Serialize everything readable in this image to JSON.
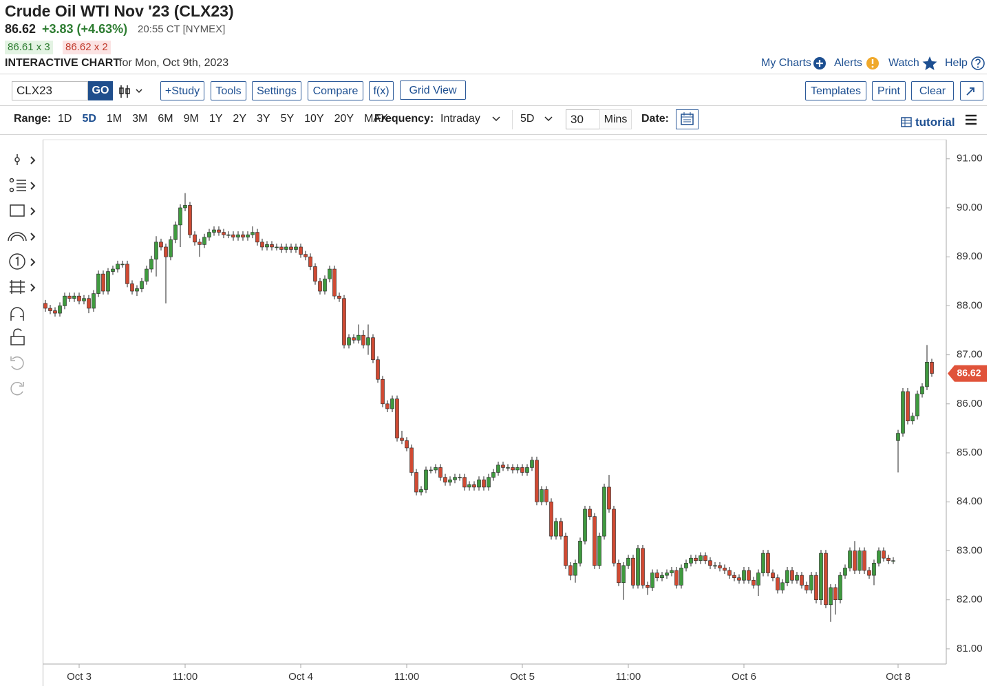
{
  "header": {
    "title": "Crude Oil WTI Nov '23 (CLX23)",
    "price": "86.62",
    "change": "+3.83 (+4.63%)",
    "time": "20:55 CT [NYMEX]",
    "bid": "86.61 x 3",
    "ask": "86.62 x 2",
    "section": "INTERACTIVE CHART",
    "date": "for Mon, Oct 9th, 2023",
    "links": [
      "My Charts",
      "Alerts",
      "Watch",
      "Help"
    ]
  },
  "toolbar": {
    "symbol": "CLX23",
    "go": "GO",
    "left_buttons": [
      "+Study",
      "Tools",
      "Settings",
      "Compare",
      "f(x)",
      "Grid View"
    ],
    "right_buttons": [
      "Templates",
      "Print",
      "Clear"
    ]
  },
  "range_bar": {
    "range_label": "Range:",
    "ranges": [
      "1D",
      "5D",
      "1M",
      "3M",
      "6M",
      "9M",
      "1Y",
      "2Y",
      "3Y",
      "5Y",
      "10Y",
      "20Y",
      "MAX"
    ],
    "active_range": 1,
    "frequency_label": "Frequency:",
    "frequency": "Intraday",
    "period": "5D",
    "interval": "30",
    "interval_unit": "Mins",
    "date_label": "Date:",
    "tutorial": "tutorial"
  },
  "chart_data": {
    "type": "candlestick",
    "categories": [
      null,
      null,
      null,
      null,
      null,
      null,
      null,
      "Oct 3",
      null,
      null,
      null,
      null,
      null,
      null,
      null,
      null,
      null,
      null,
      null,
      null,
      null,
      null,
      null,
      null,
      null,
      null,
      null,
      null,
      null,
      "11:00",
      null,
      null,
      null,
      null,
      null,
      null,
      null,
      null,
      null,
      null,
      null,
      null,
      null,
      null,
      null,
      null,
      null,
      null,
      null,
      null,
      null,
      null,
      null,
      "Oct 4",
      null,
      null,
      null,
      null,
      null,
      null,
      null,
      null,
      null,
      null,
      null,
      null,
      null,
      null,
      null,
      null,
      null,
      null,
      null,
      null,
      null,
      "11:00",
      null,
      null,
      null,
      null,
      null,
      null,
      null,
      null,
      null,
      null,
      null,
      null,
      null,
      null,
      null,
      null,
      null,
      null,
      null,
      null,
      null,
      null,
      null,
      "Oct 5",
      null,
      null,
      null,
      null,
      null,
      null,
      null,
      null,
      null,
      null,
      null,
      null,
      null,
      null,
      null,
      null,
      null,
      null,
      null,
      null,
      null,
      "11:00",
      null,
      null,
      null,
      null,
      null,
      null,
      null,
      null,
      null,
      null,
      null,
      null,
      null,
      null,
      null,
      null,
      null,
      null,
      null,
      null,
      null,
      null,
      null,
      "Oct 6",
      null,
      null,
      null,
      null,
      null,
      null,
      null,
      null,
      null,
      null,
      null,
      null,
      null,
      null,
      null,
      null,
      null,
      null,
      null,
      null,
      null,
      null,
      null,
      null,
      null,
      null,
      null,
      null,
      null,
      null,
      null,
      "Oct 8",
      null,
      null,
      null,
      null,
      null,
      null,
      null
    ],
    "candles": [
      [
        88.05,
        88.12,
        87.88,
        87.95
      ],
      [
        87.95,
        88.02,
        87.83,
        87.9
      ],
      [
        87.9,
        87.97,
        87.78,
        87.85
      ],
      [
        87.85,
        88.07,
        87.78,
        88.0
      ],
      [
        88.0,
        88.27,
        87.93,
        88.2
      ],
      [
        88.2,
        88.27,
        88.08,
        88.15
      ],
      [
        88.15,
        88.27,
        88.08,
        88.2
      ],
      [
        88.2,
        88.27,
        88.03,
        88.1
      ],
      [
        88.1,
        88.22,
        88.03,
        88.15
      ],
      [
        88.15,
        88.22,
        87.85,
        87.95
      ],
      [
        87.95,
        88.32,
        87.88,
        88.25
      ],
      [
        88.25,
        88.72,
        88.18,
        88.65
      ],
      [
        88.65,
        88.72,
        88.23,
        88.3
      ],
      [
        88.3,
        88.77,
        88.23,
        88.7
      ],
      [
        88.7,
        88.82,
        88.63,
        88.75
      ],
      [
        88.75,
        88.92,
        88.68,
        88.85
      ],
      [
        88.85,
        88.92,
        88.78,
        88.85
      ],
      [
        88.85,
        88.92,
        88.38,
        88.45
      ],
      [
        88.45,
        88.52,
        88.23,
        88.3
      ],
      [
        88.3,
        88.42,
        88.2,
        88.35
      ],
      [
        88.35,
        88.57,
        88.28,
        88.5
      ],
      [
        88.5,
        88.82,
        88.43,
        88.75
      ],
      [
        88.75,
        89.02,
        88.68,
        88.95
      ],
      [
        88.95,
        89.42,
        88.6,
        89.3
      ],
      [
        89.3,
        89.37,
        89.13,
        89.2
      ],
      [
        89.2,
        89.27,
        88.05,
        89.0
      ],
      [
        89.0,
        89.42,
        88.93,
        89.35
      ],
      [
        89.35,
        89.72,
        89.28,
        89.65
      ],
      [
        89.65,
        90.07,
        89.2,
        90.0
      ],
      [
        90.0,
        90.3,
        89.93,
        90.05
      ],
      [
        90.05,
        90.12,
        89.38,
        89.45
      ],
      [
        89.45,
        89.52,
        89.23,
        89.3
      ],
      [
        89.3,
        89.37,
        89.0,
        89.25
      ],
      [
        89.25,
        89.47,
        89.18,
        89.4
      ],
      [
        89.4,
        89.57,
        89.33,
        89.5
      ],
      [
        89.5,
        89.62,
        89.43,
        89.55
      ],
      [
        89.55,
        89.62,
        89.43,
        89.5
      ],
      [
        89.5,
        89.57,
        89.38,
        89.45
      ],
      [
        89.45,
        89.52,
        89.38,
        89.45
      ],
      [
        89.45,
        89.52,
        89.33,
        89.4
      ],
      [
        89.4,
        89.52,
        89.33,
        89.45
      ],
      [
        89.45,
        89.52,
        89.33,
        89.4
      ],
      [
        89.4,
        89.52,
        89.33,
        89.45
      ],
      [
        89.45,
        89.62,
        89.38,
        89.5
      ],
      [
        89.5,
        89.57,
        89.23,
        89.3
      ],
      [
        89.3,
        89.37,
        89.13,
        89.2
      ],
      [
        89.2,
        89.32,
        89.13,
        89.25
      ],
      [
        89.25,
        89.32,
        89.13,
        89.2
      ],
      [
        89.2,
        89.27,
        89.13,
        89.2
      ],
      [
        89.2,
        89.27,
        89.08,
        89.15
      ],
      [
        89.15,
        89.27,
        89.08,
        89.2
      ],
      [
        89.2,
        89.27,
        89.08,
        89.15
      ],
      [
        89.15,
        89.27,
        89.08,
        89.2
      ],
      [
        89.2,
        89.27,
        88.98,
        89.05
      ],
      [
        89.05,
        89.12,
        88.93,
        89.0
      ],
      [
        89.0,
        89.07,
        88.73,
        88.8
      ],
      [
        88.8,
        88.87,
        88.43,
        88.5
      ],
      [
        88.5,
        88.57,
        88.23,
        88.3
      ],
      [
        88.3,
        88.62,
        88.23,
        88.55
      ],
      [
        88.55,
        88.82,
        88.48,
        88.75
      ],
      [
        88.75,
        88.82,
        88.13,
        88.2
      ],
      [
        88.2,
        88.27,
        88.08,
        88.15
      ],
      [
        88.15,
        88.22,
        87.13,
        87.2
      ],
      [
        87.2,
        87.42,
        87.13,
        87.35
      ],
      [
        87.35,
        87.42,
        87.23,
        87.3
      ],
      [
        87.3,
        87.62,
        87.23,
        87.4
      ],
      [
        87.4,
        87.5,
        87.13,
        87.2
      ],
      [
        87.2,
        87.62,
        87.0,
        87.35
      ],
      [
        87.35,
        87.42,
        86.83,
        86.9
      ],
      [
        86.9,
        86.97,
        86.43,
        86.5
      ],
      [
        86.5,
        86.57,
        85.93,
        86.0
      ],
      [
        86.0,
        86.07,
        85.83,
        85.9
      ],
      [
        85.9,
        86.17,
        85.83,
        86.1
      ],
      [
        86.1,
        86.17,
        85.23,
        85.3
      ],
      [
        85.3,
        85.45,
        85.18,
        85.25
      ],
      [
        85.25,
        85.32,
        85.03,
        85.1
      ],
      [
        85.1,
        85.17,
        84.53,
        84.6
      ],
      [
        84.6,
        84.67,
        84.13,
        84.2
      ],
      [
        84.2,
        84.32,
        84.13,
        84.25
      ],
      [
        84.25,
        84.72,
        84.18,
        84.65
      ],
      [
        84.65,
        84.72,
        84.58,
        84.65
      ],
      [
        84.65,
        84.77,
        84.58,
        84.7
      ],
      [
        84.7,
        84.77,
        84.43,
        84.5
      ],
      [
        84.5,
        84.57,
        84.33,
        84.4
      ],
      [
        84.4,
        84.52,
        84.33,
        84.45
      ],
      [
        84.45,
        84.57,
        84.38,
        84.5
      ],
      [
        84.5,
        84.57,
        84.43,
        84.5
      ],
      [
        84.5,
        84.57,
        84.23,
        84.3
      ],
      [
        84.3,
        84.42,
        84.23,
        84.35
      ],
      [
        84.35,
        84.42,
        84.23,
        84.3
      ],
      [
        84.3,
        84.52,
        84.23,
        84.45
      ],
      [
        84.45,
        84.52,
        84.23,
        84.3
      ],
      [
        84.3,
        84.57,
        84.23,
        84.5
      ],
      [
        84.5,
        84.67,
        84.43,
        84.6
      ],
      [
        84.6,
        84.82,
        84.53,
        84.75
      ],
      [
        84.75,
        84.82,
        84.63,
        84.7
      ],
      [
        84.7,
        84.77,
        84.63,
        84.7
      ],
      [
        84.7,
        84.77,
        84.58,
        84.65
      ],
      [
        84.65,
        84.77,
        84.58,
        84.7
      ],
      [
        84.7,
        84.77,
        84.53,
        84.6
      ],
      [
        84.6,
        84.77,
        84.53,
        84.7
      ],
      [
        84.7,
        84.92,
        84.63,
        84.85
      ],
      [
        84.85,
        84.92,
        83.93,
        84.0
      ],
      [
        84.0,
        84.32,
        83.93,
        84.25
      ],
      [
        84.25,
        84.32,
        83.93,
        84.0
      ],
      [
        84.0,
        84.07,
        83.23,
        83.3
      ],
      [
        83.3,
        83.67,
        83.23,
        83.6
      ],
      [
        83.6,
        83.67,
        83.23,
        83.3
      ],
      [
        83.3,
        83.37,
        82.63,
        82.7
      ],
      [
        82.7,
        82.77,
        82.4,
        82.5
      ],
      [
        82.5,
        82.82,
        82.35,
        82.75
      ],
      [
        82.75,
        83.27,
        82.68,
        83.2
      ],
      [
        83.2,
        83.92,
        83.13,
        83.85
      ],
      [
        83.85,
        83.92,
        83.63,
        83.7
      ],
      [
        83.7,
        83.77,
        82.63,
        82.7
      ],
      [
        82.7,
        83.37,
        82.63,
        83.3
      ],
      [
        83.3,
        84.37,
        83.23,
        84.3
      ],
      [
        84.3,
        84.55,
        83.78,
        83.85
      ],
      [
        83.85,
        83.92,
        82.68,
        82.75
      ],
      [
        82.75,
        82.82,
        82.28,
        82.35
      ],
      [
        82.35,
        82.77,
        82.0,
        82.7
      ],
      [
        82.7,
        82.92,
        82.63,
        82.85
      ],
      [
        82.85,
        82.92,
        82.23,
        82.3
      ],
      [
        82.3,
        83.12,
        82.23,
        83.05
      ],
      [
        83.05,
        83.12,
        82.23,
        82.3
      ],
      [
        82.3,
        82.37,
        82.1,
        82.25
      ],
      [
        82.25,
        82.62,
        82.18,
        82.55
      ],
      [
        82.55,
        82.62,
        82.38,
        82.45
      ],
      [
        82.45,
        82.57,
        82.38,
        82.5
      ],
      [
        82.5,
        82.62,
        82.43,
        82.55
      ],
      [
        82.55,
        82.67,
        82.48,
        82.6
      ],
      [
        82.6,
        82.67,
        82.23,
        82.3
      ],
      [
        82.3,
        82.72,
        82.23,
        82.65
      ],
      [
        82.65,
        82.82,
        82.58,
        82.75
      ],
      [
        82.75,
        82.92,
        82.68,
        82.85
      ],
      [
        82.85,
        82.92,
        82.73,
        82.8
      ],
      [
        82.8,
        82.97,
        82.73,
        82.9
      ],
      [
        82.9,
        82.97,
        82.73,
        82.8
      ],
      [
        82.8,
        82.87,
        82.63,
        82.7
      ],
      [
        82.7,
        82.77,
        82.63,
        82.7
      ],
      [
        82.7,
        82.77,
        82.58,
        82.65
      ],
      [
        82.65,
        82.72,
        82.53,
        82.6
      ],
      [
        82.6,
        82.67,
        82.43,
        82.5
      ],
      [
        82.5,
        82.57,
        82.38,
        82.45
      ],
      [
        82.45,
        82.52,
        82.33,
        82.4
      ],
      [
        82.4,
        82.67,
        82.33,
        82.6
      ],
      [
        82.6,
        82.67,
        82.33,
        82.4
      ],
      [
        82.4,
        82.47,
        82.23,
        82.3
      ],
      [
        82.3,
        82.62,
        82.08,
        82.55
      ],
      [
        82.55,
        83.02,
        82.48,
        82.95
      ],
      [
        82.95,
        83.02,
        82.48,
        82.55
      ],
      [
        82.55,
        82.62,
        82.38,
        82.45
      ],
      [
        82.45,
        82.52,
        82.13,
        82.2
      ],
      [
        82.2,
        82.42,
        82.13,
        82.35
      ],
      [
        82.35,
        82.67,
        82.28,
        82.6
      ],
      [
        82.6,
        82.67,
        82.33,
        82.4
      ],
      [
        82.4,
        82.57,
        82.33,
        82.5
      ],
      [
        82.5,
        82.57,
        82.23,
        82.3
      ],
      [
        82.3,
        82.37,
        82.13,
        82.2
      ],
      [
        82.2,
        82.57,
        82.13,
        82.5
      ],
      [
        82.5,
        82.57,
        81.93,
        82.0
      ],
      [
        82.0,
        83.02,
        81.9,
        82.95
      ],
      [
        82.95,
        83.02,
        81.83,
        81.9
      ],
      [
        81.9,
        82.32,
        81.55,
        82.25
      ],
      [
        82.25,
        82.32,
        81.7,
        82.0
      ],
      [
        82.0,
        82.57,
        81.93,
        82.5
      ],
      [
        82.5,
        82.72,
        82.43,
        82.65
      ],
      [
        82.65,
        83.07,
        82.58,
        83.0
      ],
      [
        83.0,
        83.2,
        82.53,
        82.6
      ],
      [
        82.6,
        83.07,
        82.53,
        83.0
      ],
      [
        83.0,
        83.07,
        82.53,
        82.6
      ],
      [
        82.6,
        82.67,
        82.43,
        82.5
      ],
      [
        82.5,
        82.82,
        82.3,
        82.75
      ],
      [
        82.75,
        83.07,
        82.68,
        83.0
      ],
      [
        83.0,
        83.07,
        82.78,
        82.85
      ],
      [
        82.85,
        82.92,
        82.73,
        82.8
      ],
      [
        82.8,
        82.87,
        82.73,
        82.8
      ],
      [
        85.25,
        85.47,
        84.6,
        85.4
      ],
      [
        85.4,
        86.32,
        85.33,
        86.25
      ],
      [
        86.25,
        86.32,
        85.58,
        85.65
      ],
      [
        85.65,
        85.82,
        85.58,
        85.75
      ],
      [
        85.75,
        86.27,
        85.68,
        86.2
      ],
      [
        86.2,
        86.42,
        86.13,
        86.35
      ],
      [
        86.35,
        87.2,
        86.28,
        86.85
      ],
      [
        86.85,
        86.92,
        86.55,
        86.62
      ]
    ],
    "up_color": "#3f9a3f",
    "down_color": "#d04a33",
    "ylim": [
      80.69,
      91.39
    ],
    "yticks": [
      {
        "value": 81,
        "label": "81.00"
      },
      {
        "value": 82,
        "label": "82.00"
      },
      {
        "value": 83,
        "label": "83.00"
      },
      {
        "value": 84,
        "label": "84.00"
      },
      {
        "value": 85,
        "label": "85.00"
      },
      {
        "value": 86,
        "label": "86.00"
      },
      {
        "value": 87,
        "label": "87.00"
      },
      {
        "value": 88,
        "label": "88.00"
      },
      {
        "value": 89,
        "label": "89.00"
      },
      {
        "value": 90,
        "label": "90.00"
      },
      {
        "value": 91,
        "label": "91.00"
      }
    ],
    "last_price": {
      "value": 86.62,
      "label": "86.62"
    }
  }
}
